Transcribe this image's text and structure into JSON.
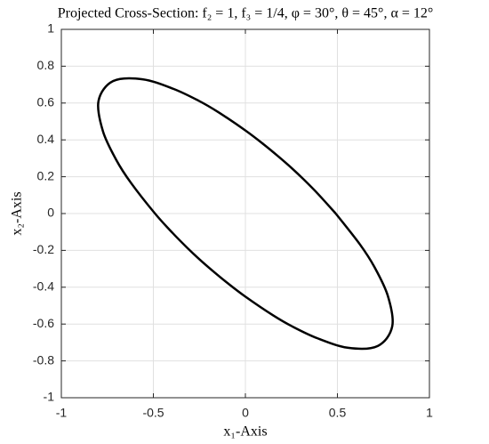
{
  "chart_data": {
    "type": "line",
    "title": "Projected Cross-Section: f₂ = 1, f₃ = 1/4, φ = 30°, θ = 45°, α = 12°",
    "xlabel": "x₁-Axis",
    "ylabel": "x₂-Axis",
    "x": [
      0.491,
      0.395,
      0.318,
      0.249,
      0.179,
      0.1,
      0,
      -0.148,
      -0.253,
      -0.391,
      -0.559,
      -0.719,
      -0.798,
      -0.774,
      -0.701,
      -0.622,
      -0.491,
      -0.395,
      -0.318,
      -0.249,
      -0.179,
      -0.1,
      0,
      0.148,
      0.253,
      0.391,
      0.559,
      0.719,
      0.798,
      0.774,
      0.701,
      0.622,
      0.491
    ],
    "series": [
      {
        "color": "#000000",
        "values": [
          0,
          0.106,
          0.184,
          0.249,
          0.31,
          0.375,
          0.451,
          0.551,
          0.612,
          0.677,
          0.729,
          0.719,
          0.612,
          0.447,
          0.29,
          0.167,
          0,
          -0.106,
          -0.184,
          -0.249,
          -0.31,
          -0.375,
          -0.451,
          -0.551,
          -0.612,
          -0.677,
          -0.729,
          -0.719,
          -0.612,
          -0.447,
          -0.29,
          -0.167,
          0
        ]
      }
    ],
    "xlim": [
      -1,
      1
    ],
    "ylim": [
      -1,
      1
    ],
    "xticks": [
      -1,
      -0.5,
      0,
      0.5,
      1
    ],
    "yticks": [
      -1,
      -0.8,
      -0.6,
      -0.4,
      -0.2,
      0,
      0.2,
      0.4,
      0.6,
      0.8,
      1
    ],
    "grid": true
  }
}
